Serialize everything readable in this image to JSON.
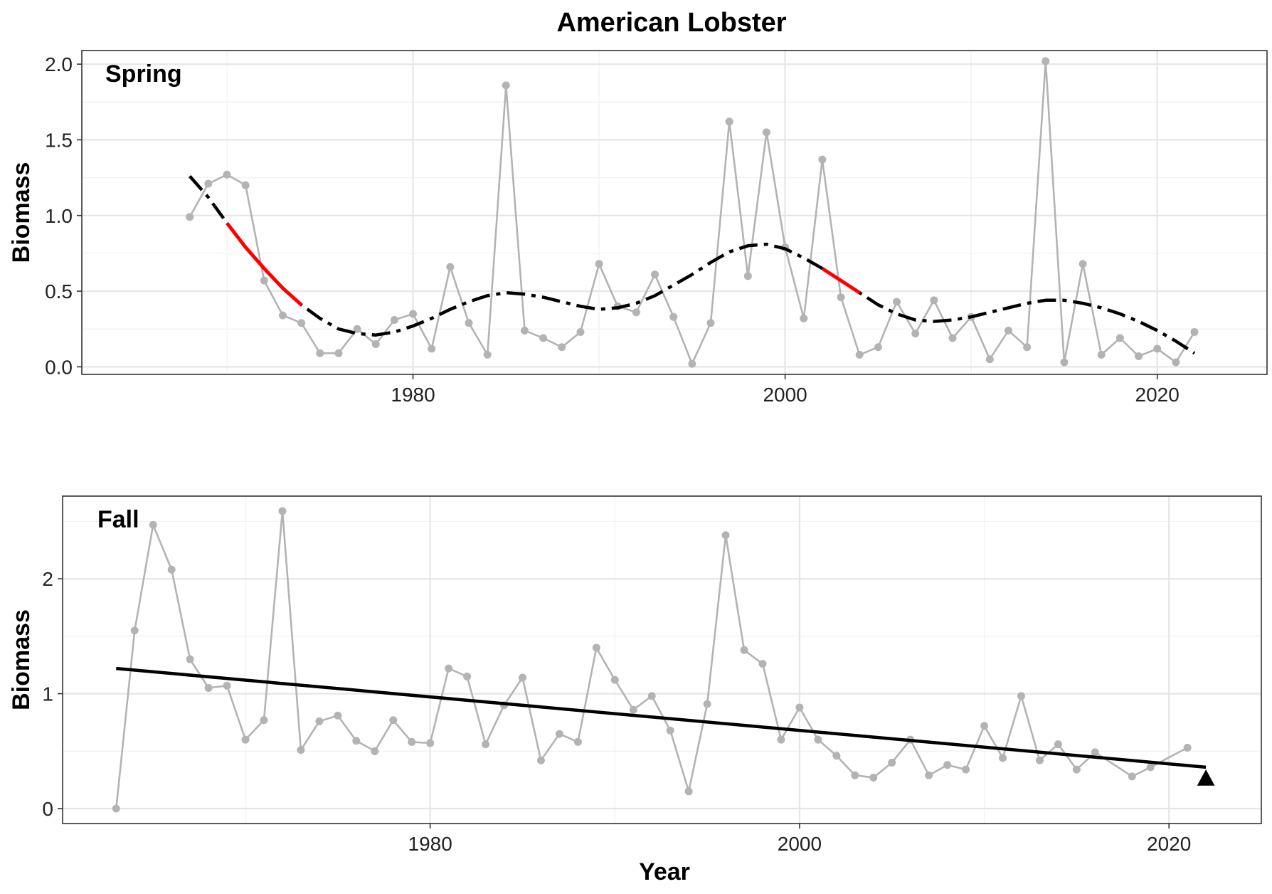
{
  "figure": {
    "title": "American Lobster",
    "xlabel": "Year"
  },
  "colors": {
    "observed": "#b3b3b3",
    "trend": "#000000",
    "highlight": "#ff0000",
    "grid_major": "#e6e6e6",
    "grid_minor": "#f1f1f1",
    "panel_border": "#333333"
  },
  "chart_data": [
    {
      "type": "line",
      "panel_label": "Spring",
      "ylabel": "Biomass",
      "xlim": [
        1962.2,
        2025.9
      ],
      "ylim": [
        -0.05,
        2.09
      ],
      "xticks": [
        1980,
        2000,
        2020
      ],
      "yticks": [
        0.0,
        0.5,
        1.0,
        1.5,
        2.0
      ],
      "ytick_labels": [
        "0.0",
        "0.5",
        "1.0",
        "1.5",
        "2.0"
      ],
      "grid": true,
      "series": [
        {
          "role": "observed",
          "style": "gray line with points",
          "x": [
            1968,
            1969,
            1970,
            1971,
            1972,
            1973,
            1974,
            1975,
            1976,
            1977,
            1978,
            1979,
            1980,
            1981,
            1982,
            1983,
            1984,
            1985,
            1986,
            1987,
            1988,
            1989,
            1990,
            1991,
            1992,
            1993,
            1994,
            1995,
            1996,
            1997,
            1998,
            1999,
            2000,
            2001,
            2002,
            2003,
            2004,
            2005,
            2006,
            2007,
            2008,
            2009,
            2010,
            2011,
            2012,
            2013,
            2014,
            2015,
            2016,
            2017,
            2018,
            2019,
            2020,
            2021,
            2022
          ],
          "y": [
            0.99,
            1.21,
            1.27,
            1.2,
            0.57,
            0.34,
            0.29,
            0.09,
            0.09,
            0.25,
            0.15,
            0.31,
            0.35,
            0.12,
            0.66,
            0.29,
            0.08,
            1.86,
            0.24,
            0.19,
            0.13,
            0.23,
            0.68,
            0.4,
            0.36,
            0.61,
            0.33,
            0.02,
            0.29,
            1.62,
            0.6,
            1.55,
            0.79,
            0.32,
            1.37,
            0.46,
            0.08,
            0.13,
            0.43,
            0.22,
            0.44,
            0.19,
            0.33,
            0.05,
            0.24,
            0.13,
            2.02,
            0.03,
            0.68,
            0.08,
            0.19,
            0.07,
            0.12,
            0.03,
            0.23
          ]
        },
        {
          "role": "trend",
          "style": "black dash-dot smooth",
          "x": [
            1968,
            1969,
            1970,
            1971,
            1972,
            1973,
            1974,
            1975,
            1976,
            1977,
            1978,
            1979,
            1980,
            1981,
            1982,
            1983,
            1984,
            1985,
            1986,
            1987,
            1988,
            1989,
            1990,
            1991,
            1992,
            1993,
            1994,
            1995,
            1996,
            1997,
            1998,
            1999,
            2000,
            2001,
            2002,
            2003,
            2004,
            2005,
            2006,
            2007,
            2008,
            2009,
            2010,
            2011,
            2012,
            2013,
            2014,
            2015,
            2016,
            2017,
            2018,
            2019,
            2020,
            2021,
            2022
          ],
          "y": [
            1.26,
            1.12,
            0.95,
            0.79,
            0.65,
            0.52,
            0.41,
            0.32,
            0.25,
            0.22,
            0.21,
            0.23,
            0.27,
            0.32,
            0.38,
            0.43,
            0.47,
            0.49,
            0.48,
            0.46,
            0.43,
            0.4,
            0.38,
            0.39,
            0.42,
            0.47,
            0.54,
            0.61,
            0.69,
            0.76,
            0.8,
            0.81,
            0.78,
            0.72,
            0.65,
            0.57,
            0.49,
            0.41,
            0.35,
            0.31,
            0.3,
            0.31,
            0.33,
            0.36,
            0.39,
            0.42,
            0.44,
            0.44,
            0.42,
            0.39,
            0.35,
            0.3,
            0.24,
            0.17,
            0.09
          ],
          "highlight_ranges": [
            [
              1970,
              1974
            ],
            [
              2002,
              2004
            ]
          ]
        }
      ]
    },
    {
      "type": "line",
      "panel_label": "Fall",
      "ylabel": "Biomass",
      "xlim": [
        1960.1,
        2025.0
      ],
      "ylim": [
        -0.13,
        2.72
      ],
      "xticks": [
        1980,
        2000,
        2020
      ],
      "yticks": [
        0,
        1,
        2
      ],
      "ytick_labels": [
        "0",
        "1",
        "2"
      ],
      "grid": true,
      "series": [
        {
          "role": "observed",
          "style": "gray line with points",
          "x": [
            1963,
            1964,
            1965,
            1966,
            1967,
            1968,
            1969,
            1970,
            1971,
            1972,
            1973,
            1974,
            1975,
            1976,
            1977,
            1978,
            1979,
            1980,
            1981,
            1982,
            1983,
            1984,
            1985,
            1986,
            1987,
            1988,
            1989,
            1990,
            1991,
            1992,
            1993,
            1994,
            1995,
            1996,
            1997,
            1998,
            1999,
            2000,
            2001,
            2002,
            2003,
            2004,
            2005,
            2006,
            2007,
            2008,
            2009,
            2010,
            2011,
            2012,
            2013,
            2014,
            2015,
            2016,
            2018,
            2019,
            2021
          ],
          "y": [
            0.0,
            1.55,
            2.47,
            2.08,
            1.3,
            1.05,
            1.07,
            0.6,
            0.77,
            2.59,
            0.51,
            0.76,
            0.81,
            0.59,
            0.5,
            0.77,
            0.58,
            0.57,
            1.22,
            1.15,
            0.56,
            0.9,
            1.14,
            0.42,
            0.65,
            0.58,
            1.4,
            1.12,
            0.86,
            0.98,
            0.68,
            0.15,
            0.91,
            2.38,
            1.38,
            1.26,
            0.6,
            0.88,
            0.6,
            0.46,
            0.29,
            0.27,
            0.4,
            0.6,
            0.29,
            0.38,
            0.34,
            0.72,
            0.44,
            0.98,
            0.42,
            0.56,
            0.34,
            0.49,
            0.28,
            0.36,
            0.53
          ]
        },
        {
          "role": "trend",
          "style": "black solid linear",
          "x": [
            1963,
            2022
          ],
          "y": [
            1.22,
            0.36
          ]
        },
        {
          "role": "final-year",
          "style": "black triangle",
          "x": [
            2022
          ],
          "y": [
            0.26
          ]
        }
      ]
    }
  ]
}
